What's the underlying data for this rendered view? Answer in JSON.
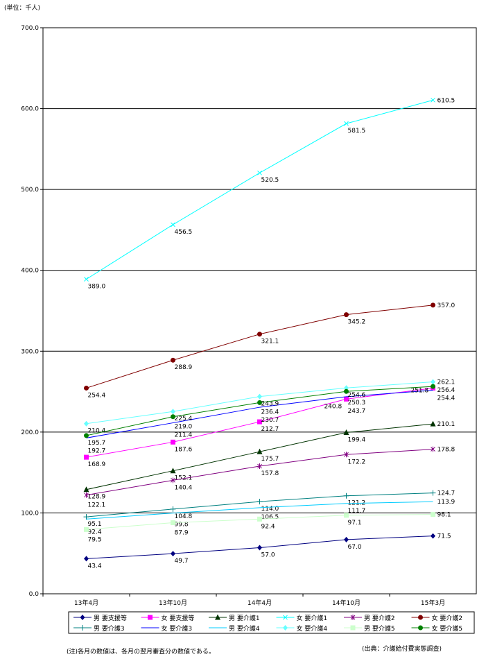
{
  "unit_label": "(単位：千人)",
  "note": "(注)各月の数値は、各月の翌月審査分の数値である。",
  "source": "(出典：介護給付費実態調査)",
  "chart_data": {
    "type": "line",
    "categories": [
      "13年4月",
      "13年10月",
      "14年4月",
      "14年10月",
      "15年3月"
    ],
    "ylim": [
      0,
      700
    ],
    "yticks": [
      0,
      100,
      200,
      300,
      400,
      500,
      600,
      700
    ],
    "grid": true,
    "legend_placement": "bottom",
    "series": [
      {
        "name": "男 要支援等",
        "color": "#000080",
        "marker": "diamond",
        "values": [
          43.4,
          49.7,
          57.0,
          67.0,
          71.5
        ]
      },
      {
        "name": "女 要支援等",
        "color": "#FF00FF",
        "marker": "square",
        "values": [
          168.9,
          187.6,
          212.7,
          240.8,
          254.4
        ]
      },
      {
        "name": "男 要介護1",
        "color": "#003300",
        "marker": "triangle",
        "values": [
          128.9,
          152.1,
          175.7,
          199.4,
          210.1
        ]
      },
      {
        "name": "女 要介護1",
        "color": "#00FFFF",
        "marker": "x",
        "values": [
          389.0,
          456.5,
          520.5,
          581.5,
          610.5
        ]
      },
      {
        "name": "男 要介護2",
        "color": "#800080",
        "marker": "star",
        "values": [
          122.1,
          140.4,
          157.8,
          172.2,
          178.8
        ]
      },
      {
        "name": "女 要介護2",
        "color": "#800000",
        "marker": "circle",
        "values": [
          254.4,
          288.9,
          321.1,
          345.2,
          357.0
        ]
      },
      {
        "name": "男 要介護3",
        "color": "#008080",
        "marker": "plus",
        "values": [
          95.1,
          104.8,
          114.0,
          121.2,
          124.7
        ]
      },
      {
        "name": "女 要介護3",
        "color": "#0000FF",
        "marker": "none",
        "values": [
          192.7,
          211.4,
          230.7,
          243.7,
          251.8
        ]
      },
      {
        "name": "男 要介護4",
        "color": "#00CCFF",
        "marker": "none",
        "values": [
          92.4,
          99.8,
          106.5,
          111.7,
          113.9
        ]
      },
      {
        "name": "女 要介護4",
        "color": "#66FFFF",
        "marker": "diamond",
        "values": [
          210.4,
          225.4,
          243.9,
          254.6,
          262.1
        ]
      },
      {
        "name": "男 要介護5",
        "color": "#CCFFCC",
        "marker": "square",
        "values": [
          79.5,
          87.9,
          92.4,
          97.1,
          98.1
        ]
      },
      {
        "name": "女 要介護5",
        "color": "#008000",
        "marker": "circle",
        "values": [
          195.7,
          219.0,
          236.4,
          250.3,
          256.4
        ]
      }
    ]
  }
}
